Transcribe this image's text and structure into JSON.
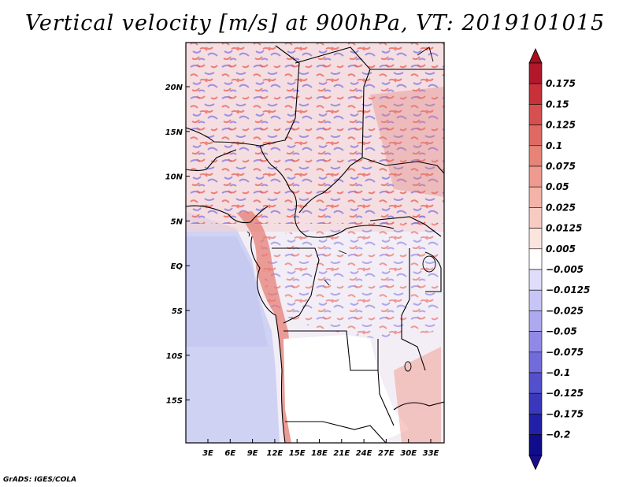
{
  "title": "Vertical velocity [m/s] at 900hPa, VT: 2019101015",
  "footer": "GrADS: IGES/COLA",
  "map": {
    "lat_labels": [
      "20N",
      "15N",
      "10N",
      "5N",
      "EQ",
      "5S",
      "10S",
      "15S"
    ],
    "lon_labels": [
      "3E",
      "6E",
      "9E",
      "12E",
      "15E",
      "18E",
      "21E",
      "24E",
      "27E",
      "30E",
      "33E"
    ]
  },
  "colorbar": {
    "labels": [
      "0.175",
      "0.15",
      "0.125",
      "0.1",
      "0.075",
      "0.05",
      "0.025",
      "0.0125",
      "0.005",
      "−0.005",
      "−0.0125",
      "−0.025",
      "−0.05",
      "−0.075",
      "−0.1",
      "−0.125",
      "−0.175",
      "−0.2"
    ],
    "colors": [
      "#b2182b",
      "#c8303a",
      "#d6504f",
      "#e06a63",
      "#e88377",
      "#ef9a8e",
      "#f4b3a8",
      "#f8cbc2",
      "#fce4de",
      "#ffffff",
      "#e0ddfa",
      "#c8c4f5",
      "#aea8ef",
      "#9189e6",
      "#716bdb",
      "#5350ce",
      "#3a37bd",
      "#2320a8",
      "#0f0d8c"
    ],
    "top_color": "#a50f1e",
    "bottom_color": "#1a0d8c"
  }
}
